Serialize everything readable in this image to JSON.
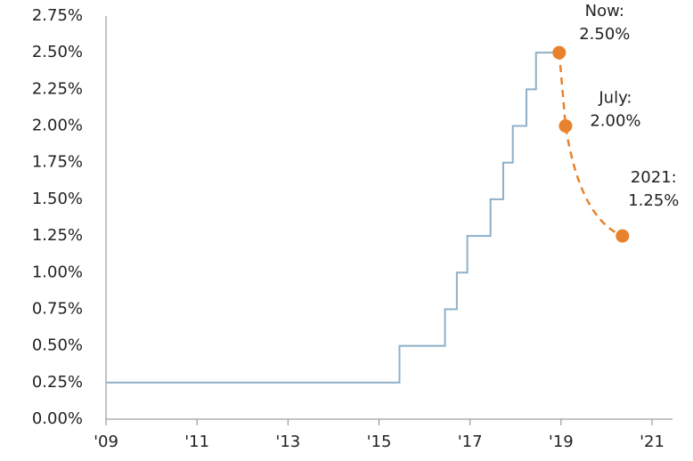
{
  "chart_data": {
    "type": "line",
    "xlim": [
      2009,
      2021.45
    ],
    "ylim": [
      0,
      2.75
    ],
    "xticks": [
      {
        "value": 2009,
        "label": "'09"
      },
      {
        "value": 2011,
        "label": "'11"
      },
      {
        "value": 2013,
        "label": "'13"
      },
      {
        "value": 2015,
        "label": "'15"
      },
      {
        "value": 2017,
        "label": "'17"
      },
      {
        "value": 2019,
        "label": "'19"
      },
      {
        "value": 2021,
        "label": "'21"
      }
    ],
    "yticks": [
      {
        "value": 0,
        "label": "0.00%"
      },
      {
        "value": 0.25,
        "label": "0.25%"
      },
      {
        "value": 0.5,
        "label": "0.50%"
      },
      {
        "value": 0.75,
        "label": "0.75%"
      },
      {
        "value": 1,
        "label": "1.00%"
      },
      {
        "value": 1.25,
        "label": "1.25%"
      },
      {
        "value": 1.5,
        "label": "1.50%"
      },
      {
        "value": 1.75,
        "label": "1.75%"
      },
      {
        "value": 2,
        "label": "2.00%"
      },
      {
        "value": 2.25,
        "label": "2.25%"
      },
      {
        "value": 2.5,
        "label": "2.50%"
      },
      {
        "value": 2.75,
        "label": "2.75%"
      }
    ],
    "series": [
      {
        "color": "#8fb0c8",
        "step": true,
        "x": [
          2009,
          2015.45,
          2016.45,
          2016.71,
          2016.94,
          2017.45,
          2017.73,
          2017.94,
          2018.24,
          2018.45,
          2018.96
        ],
        "values": [
          0.25,
          0.5,
          0.75,
          1.0,
          1.25,
          1.5,
          1.75,
          2.0,
          2.25,
          2.5,
          2.5
        ]
      },
      {
        "color": "#e8822d",
        "dashed": true,
        "markers": true,
        "x": [
          2018.96,
          2019.1,
          2020.35
        ],
        "values": [
          2.5,
          2.0,
          1.25
        ],
        "point_titles": [
          "Now:",
          "July:",
          "2021:"
        ],
        "value_labels": [
          "2.50%",
          "2.00%",
          "1.25%"
        ]
      }
    ]
  }
}
